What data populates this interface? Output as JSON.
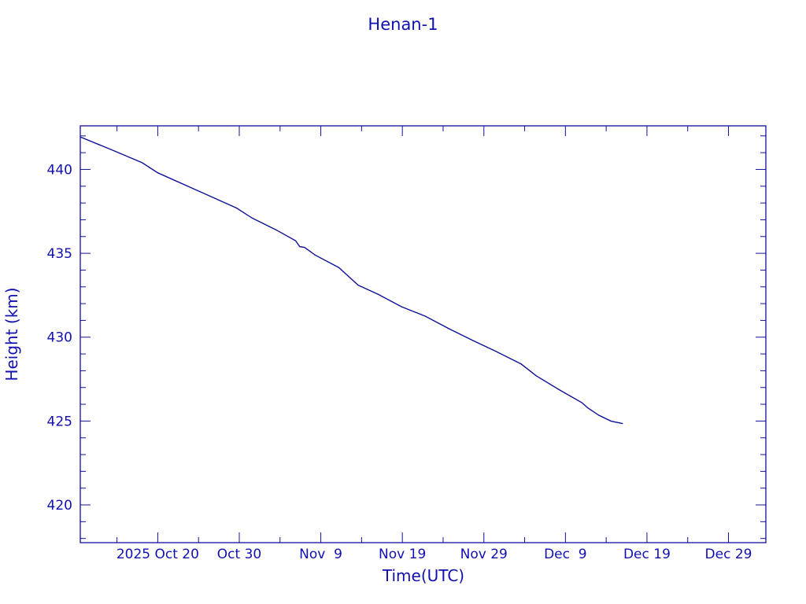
{
  "chart_data": {
    "type": "line",
    "title": "Henan-1",
    "xlabel": "Time(UTC)",
    "ylabel": "Height (km)",
    "xlim": [
      "2025-10-10T12:00Z",
      "2026-01-02T14:00Z"
    ],
    "ylim": [
      417.75,
      442.6
    ],
    "grid": false,
    "color": "#10109a",
    "x_ticks": [
      {
        "date": "2025-10-20T00:00Z",
        "label": "2025 Oct 20"
      },
      {
        "date": "2025-10-30T00:00Z",
        "label": "Oct 30"
      },
      {
        "date": "2025-11-09T00:00Z",
        "label": "Nov  9"
      },
      {
        "date": "2025-11-19T00:00Z",
        "label": "Nov 19"
      },
      {
        "date": "2025-11-29T00:00Z",
        "label": "Nov 29"
      },
      {
        "date": "2025-12-09T00:00Z",
        "label": "Dec  9"
      },
      {
        "date": "2025-12-19T00:00Z",
        "label": "Dec 19"
      },
      {
        "date": "2025-12-29T00:00Z",
        "label": "Dec 29"
      }
    ],
    "y_ticks": [
      {
        "value": 420,
        "label": "420"
      },
      {
        "value": 425,
        "label": "425"
      },
      {
        "value": 430,
        "label": "430"
      },
      {
        "value": 435,
        "label": "435"
      },
      {
        "value": 440,
        "label": "440"
      }
    ],
    "series": [
      {
        "x": [
          "2025-10-10T14:00Z",
          "2025-10-14T05:00Z",
          "2025-10-18T02:00Z",
          "2025-10-20T00:00Z",
          "2025-10-24T20:00Z",
          "2025-10-29T16:00Z",
          "2025-10-31T14:00Z",
          "2025-11-03T12:00Z",
          "2025-11-05T22:00Z",
          "2025-11-06T10:00Z",
          "2025-11-07T00:00Z",
          "2025-11-08T07:00Z",
          "2025-11-11T05:00Z",
          "2025-11-13T14:00Z",
          "2025-11-16T01:00Z",
          "2025-11-18T23:00Z",
          "2025-11-21T20:00Z",
          "2025-11-24T18:00Z",
          "2025-11-27T16:00Z",
          "2025-11-30T12:00Z",
          "2025-12-03T14:00Z",
          "2025-12-05T10:00Z",
          "2025-12-08T07:00Z",
          "2025-12-11T00:00Z",
          "2025-12-11T17:00Z",
          "2025-12-13T02:00Z",
          "2025-12-14T14:00Z",
          "2025-12-16T00:00Z"
        ],
        "y": [
          441.92,
          441.2,
          440.4,
          439.8,
          438.75,
          437.7,
          437.1,
          436.4,
          435.75,
          435.4,
          435.35,
          434.9,
          434.15,
          433.1,
          432.55,
          431.8,
          431.25,
          430.5,
          429.8,
          429.15,
          428.4,
          427.7,
          426.85,
          426.1,
          425.8,
          425.35,
          425.0,
          424.85
        ]
      }
    ]
  }
}
